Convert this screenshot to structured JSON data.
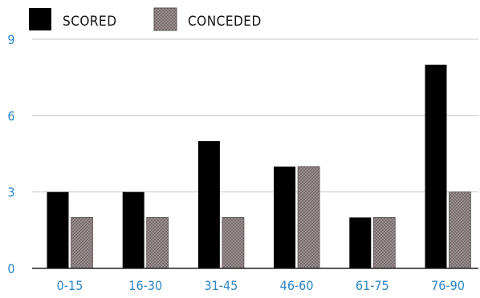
{
  "chart_data": {
    "type": "bar",
    "categories": [
      "0-15",
      "16-30",
      "31-45",
      "46-60",
      "61-75",
      "76-90"
    ],
    "series": [
      {
        "name": "SCORED",
        "values": [
          3,
          3,
          5,
          4,
          2,
          8
        ],
        "color": "#000000"
      },
      {
        "name": "CONCEDED",
        "values": [
          2,
          2,
          2,
          4,
          2,
          3
        ],
        "color": "#8a7f80"
      }
    ],
    "yticks": [
      0,
      3,
      6,
      9
    ],
    "ylim": [
      0,
      9
    ],
    "grid": true,
    "legend_position": "top-left",
    "tick_color": "#2e86c8"
  }
}
